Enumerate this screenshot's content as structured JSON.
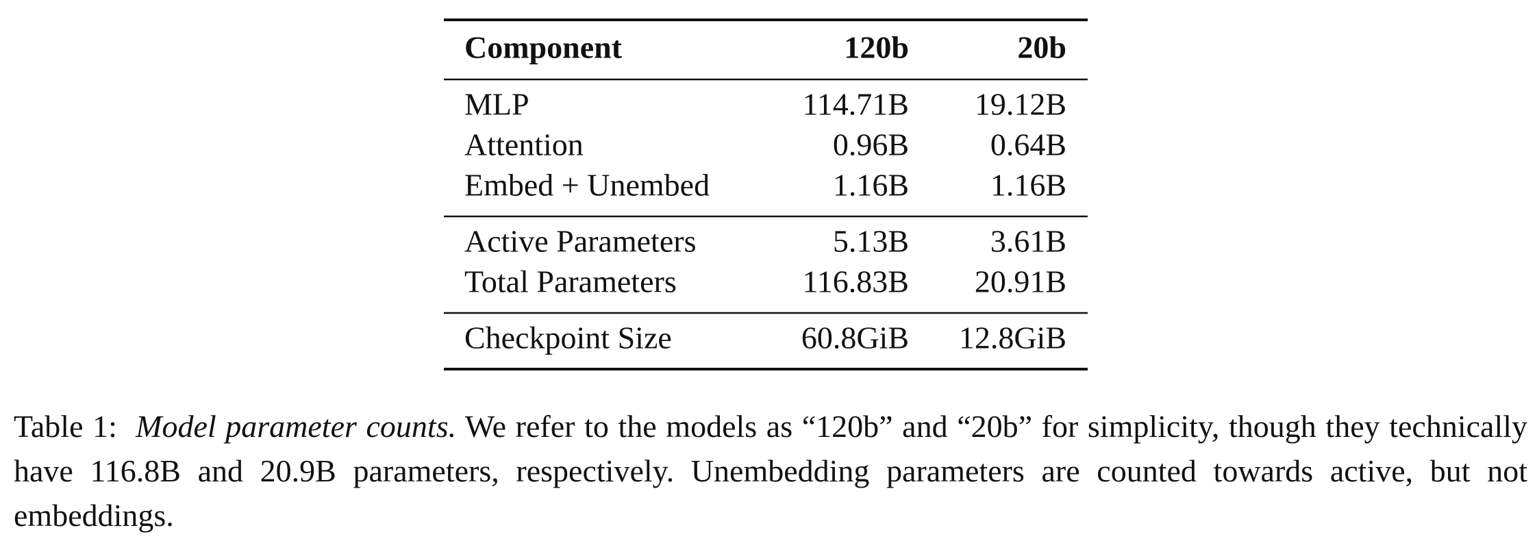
{
  "table": {
    "header": [
      "Component",
      "120b",
      "20b"
    ],
    "groups": [
      [
        [
          "MLP",
          "114.71B",
          "19.12B"
        ],
        [
          "Attention",
          "0.96B",
          "0.64B"
        ],
        [
          "Embed + Unembed",
          "1.16B",
          "1.16B"
        ]
      ],
      [
        [
          "Active Parameters",
          "5.13B",
          "3.61B"
        ],
        [
          "Total Parameters",
          "116.83B",
          "20.91B"
        ]
      ],
      [
        [
          "Checkpoint Size",
          "60.8GiB",
          "12.8GiB"
        ]
      ]
    ]
  },
  "caption": {
    "label": "Table 1:",
    "title": "Model parameter counts.",
    "text": "We refer to the models as “120b” and “20b” for simplicity, though they technically have 116.8B and 20.9B parameters, respectively. Unembedding parameters are counted towards active, but not embeddings."
  }
}
